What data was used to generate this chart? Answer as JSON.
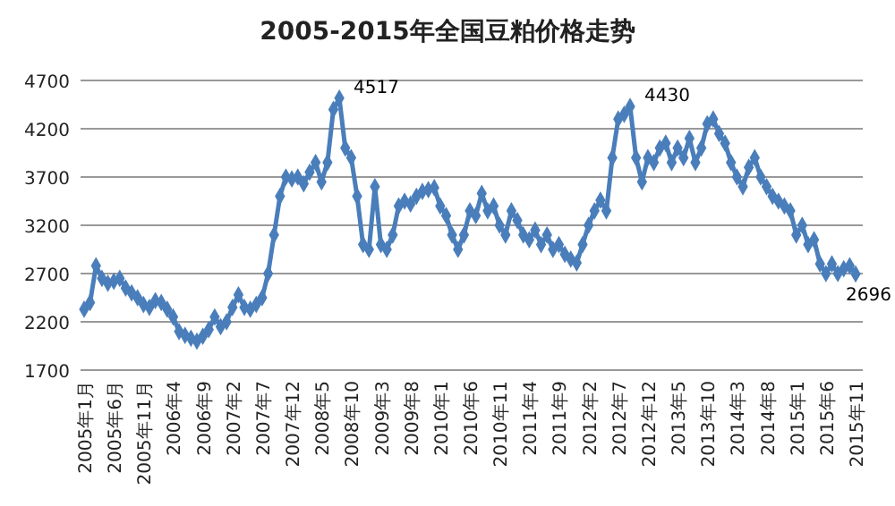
{
  "chart_data": {
    "type": "line",
    "title": "2005-2015年全国豆粕价格走势",
    "categories": [
      "2005年1月",
      null,
      null,
      null,
      null,
      "2005年6月",
      null,
      null,
      null,
      null,
      "2005年11月",
      null,
      null,
      null,
      null,
      "2006年4",
      null,
      null,
      null,
      null,
      "2006年9",
      null,
      null,
      null,
      null,
      "2007年2",
      null,
      null,
      null,
      null,
      "2007年7",
      null,
      null,
      null,
      null,
      "2007年12",
      null,
      null,
      null,
      null,
      "2008年5",
      null,
      null,
      null,
      null,
      "2008年10",
      null,
      null,
      null,
      null,
      "2009年3",
      null,
      null,
      null,
      null,
      "2009年8",
      null,
      null,
      null,
      null,
      "2010年1",
      null,
      null,
      null,
      null,
      "2010年6",
      null,
      null,
      null,
      null,
      "2010年11",
      null,
      null,
      null,
      null,
      "2011年4",
      null,
      null,
      null,
      null,
      "2011年9",
      null,
      null,
      null,
      null,
      "2012年2",
      null,
      null,
      null,
      null,
      "2012年7",
      null,
      null,
      null,
      null,
      "2012年12",
      null,
      null,
      null,
      null,
      "2013年5",
      null,
      null,
      null,
      null,
      "2013年10",
      null,
      null,
      null,
      null,
      "2014年3",
      null,
      null,
      null,
      null,
      "2014年8",
      null,
      null,
      null,
      null,
      "2015年1",
      null,
      null,
      null,
      null,
      "2015年6",
      null,
      null,
      null,
      null,
      "2015年11"
    ],
    "series": [
      {
        "color": "#4a7ebb",
        "values": [
          2330,
          2400,
          2780,
          2650,
          2600,
          2620,
          2650,
          2550,
          2500,
          2450,
          2380,
          2350,
          2420,
          2400,
          2330,
          2250,
          2100,
          2060,
          2030,
          2000,
          2050,
          2120,
          2250,
          2150,
          2200,
          2350,
          2480,
          2350,
          2330,
          2380,
          2450,
          2700,
          3100,
          3500,
          3700,
          3680,
          3700,
          3630,
          3750,
          3850,
          3650,
          3850,
          4400,
          4517,
          4000,
          3900,
          3500,
          3000,
          2950,
          3600,
          3000,
          2950,
          3100,
          3400,
          3450,
          3420,
          3500,
          3550,
          3570,
          3590,
          3400,
          3300,
          3100,
          2950,
          3100,
          3350,
          3300,
          3530,
          3350,
          3400,
          3200,
          3100,
          3350,
          3250,
          3100,
          3050,
          3150,
          3000,
          3100,
          2950,
          3000,
          2900,
          2850,
          2810,
          3000,
          3200,
          3350,
          3460,
          3350,
          3900,
          4300,
          4350,
          4430,
          3900,
          3650,
          3900,
          3850,
          4000,
          4050,
          3850,
          4000,
          3900,
          4100,
          3850,
          4000,
          4250,
          4300,
          4150,
          4050,
          3850,
          3700,
          3600,
          3800,
          3900,
          3700,
          3600,
          3500,
          3450,
          3400,
          3350,
          3100,
          3200,
          3000,
          3050,
          2800,
          2700,
          2800,
          2700,
          2750,
          2780,
          2696
        ],
        "value_labels": [
          null,
          null,
          null,
          null,
          null,
          null,
          null,
          null,
          null,
          null,
          null,
          null,
          null,
          null,
          null,
          null,
          null,
          null,
          null,
          null,
          null,
          null,
          null,
          null,
          null,
          null,
          null,
          null,
          null,
          null,
          null,
          null,
          null,
          null,
          null,
          null,
          null,
          null,
          null,
          null,
          null,
          null,
          null,
          "4517",
          null,
          null,
          null,
          null,
          null,
          null,
          null,
          null,
          null,
          null,
          null,
          null,
          null,
          null,
          null,
          null,
          null,
          null,
          null,
          null,
          null,
          null,
          null,
          null,
          null,
          null,
          null,
          null,
          null,
          null,
          null,
          null,
          null,
          null,
          null,
          null,
          null,
          null,
          null,
          null,
          null,
          null,
          null,
          null,
          null,
          null,
          null,
          null,
          "4430",
          null,
          null,
          null,
          null,
          null,
          null,
          null,
          null,
          null,
          null,
          null,
          null,
          null,
          null,
          null,
          null,
          null,
          null,
          null,
          null,
          null,
          null,
          null,
          null,
          null,
          null,
          null,
          null,
          null,
          null,
          null,
          null,
          null,
          null,
          null,
          null,
          null,
          "2696"
        ]
      }
    ],
    "ylim": [
      1700,
      4700
    ],
    "yticks": [
      1700,
      2200,
      2700,
      3200,
      3700,
      4200,
      4700
    ],
    "grid": "y",
    "marker": "diamond",
    "line_style": "solid"
  }
}
